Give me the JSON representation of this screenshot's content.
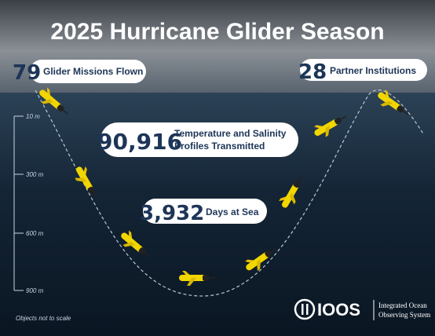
{
  "title": "2025 Hurricane Glider Season",
  "stats": [
    {
      "number": "79",
      "label": [
        "Glider Missions Flown"
      ]
    },
    {
      "number": "28",
      "label": [
        "Partner Institutions"
      ]
    },
    {
      "number": "90,916",
      "label": [
        "Temperature and Salinity",
        "Profiles Transmitted"
      ]
    },
    {
      "number": "3,932",
      "label": [
        "Days at Sea"
      ]
    }
  ],
  "depth_scale": [
    "10 m",
    "300 m",
    "600 m",
    "900 m"
  ],
  "note": "Objects not to scale",
  "logo": {
    "name": "IOOS",
    "tagline": [
      "Integrated Ocean",
      "Observing System"
    ]
  }
}
